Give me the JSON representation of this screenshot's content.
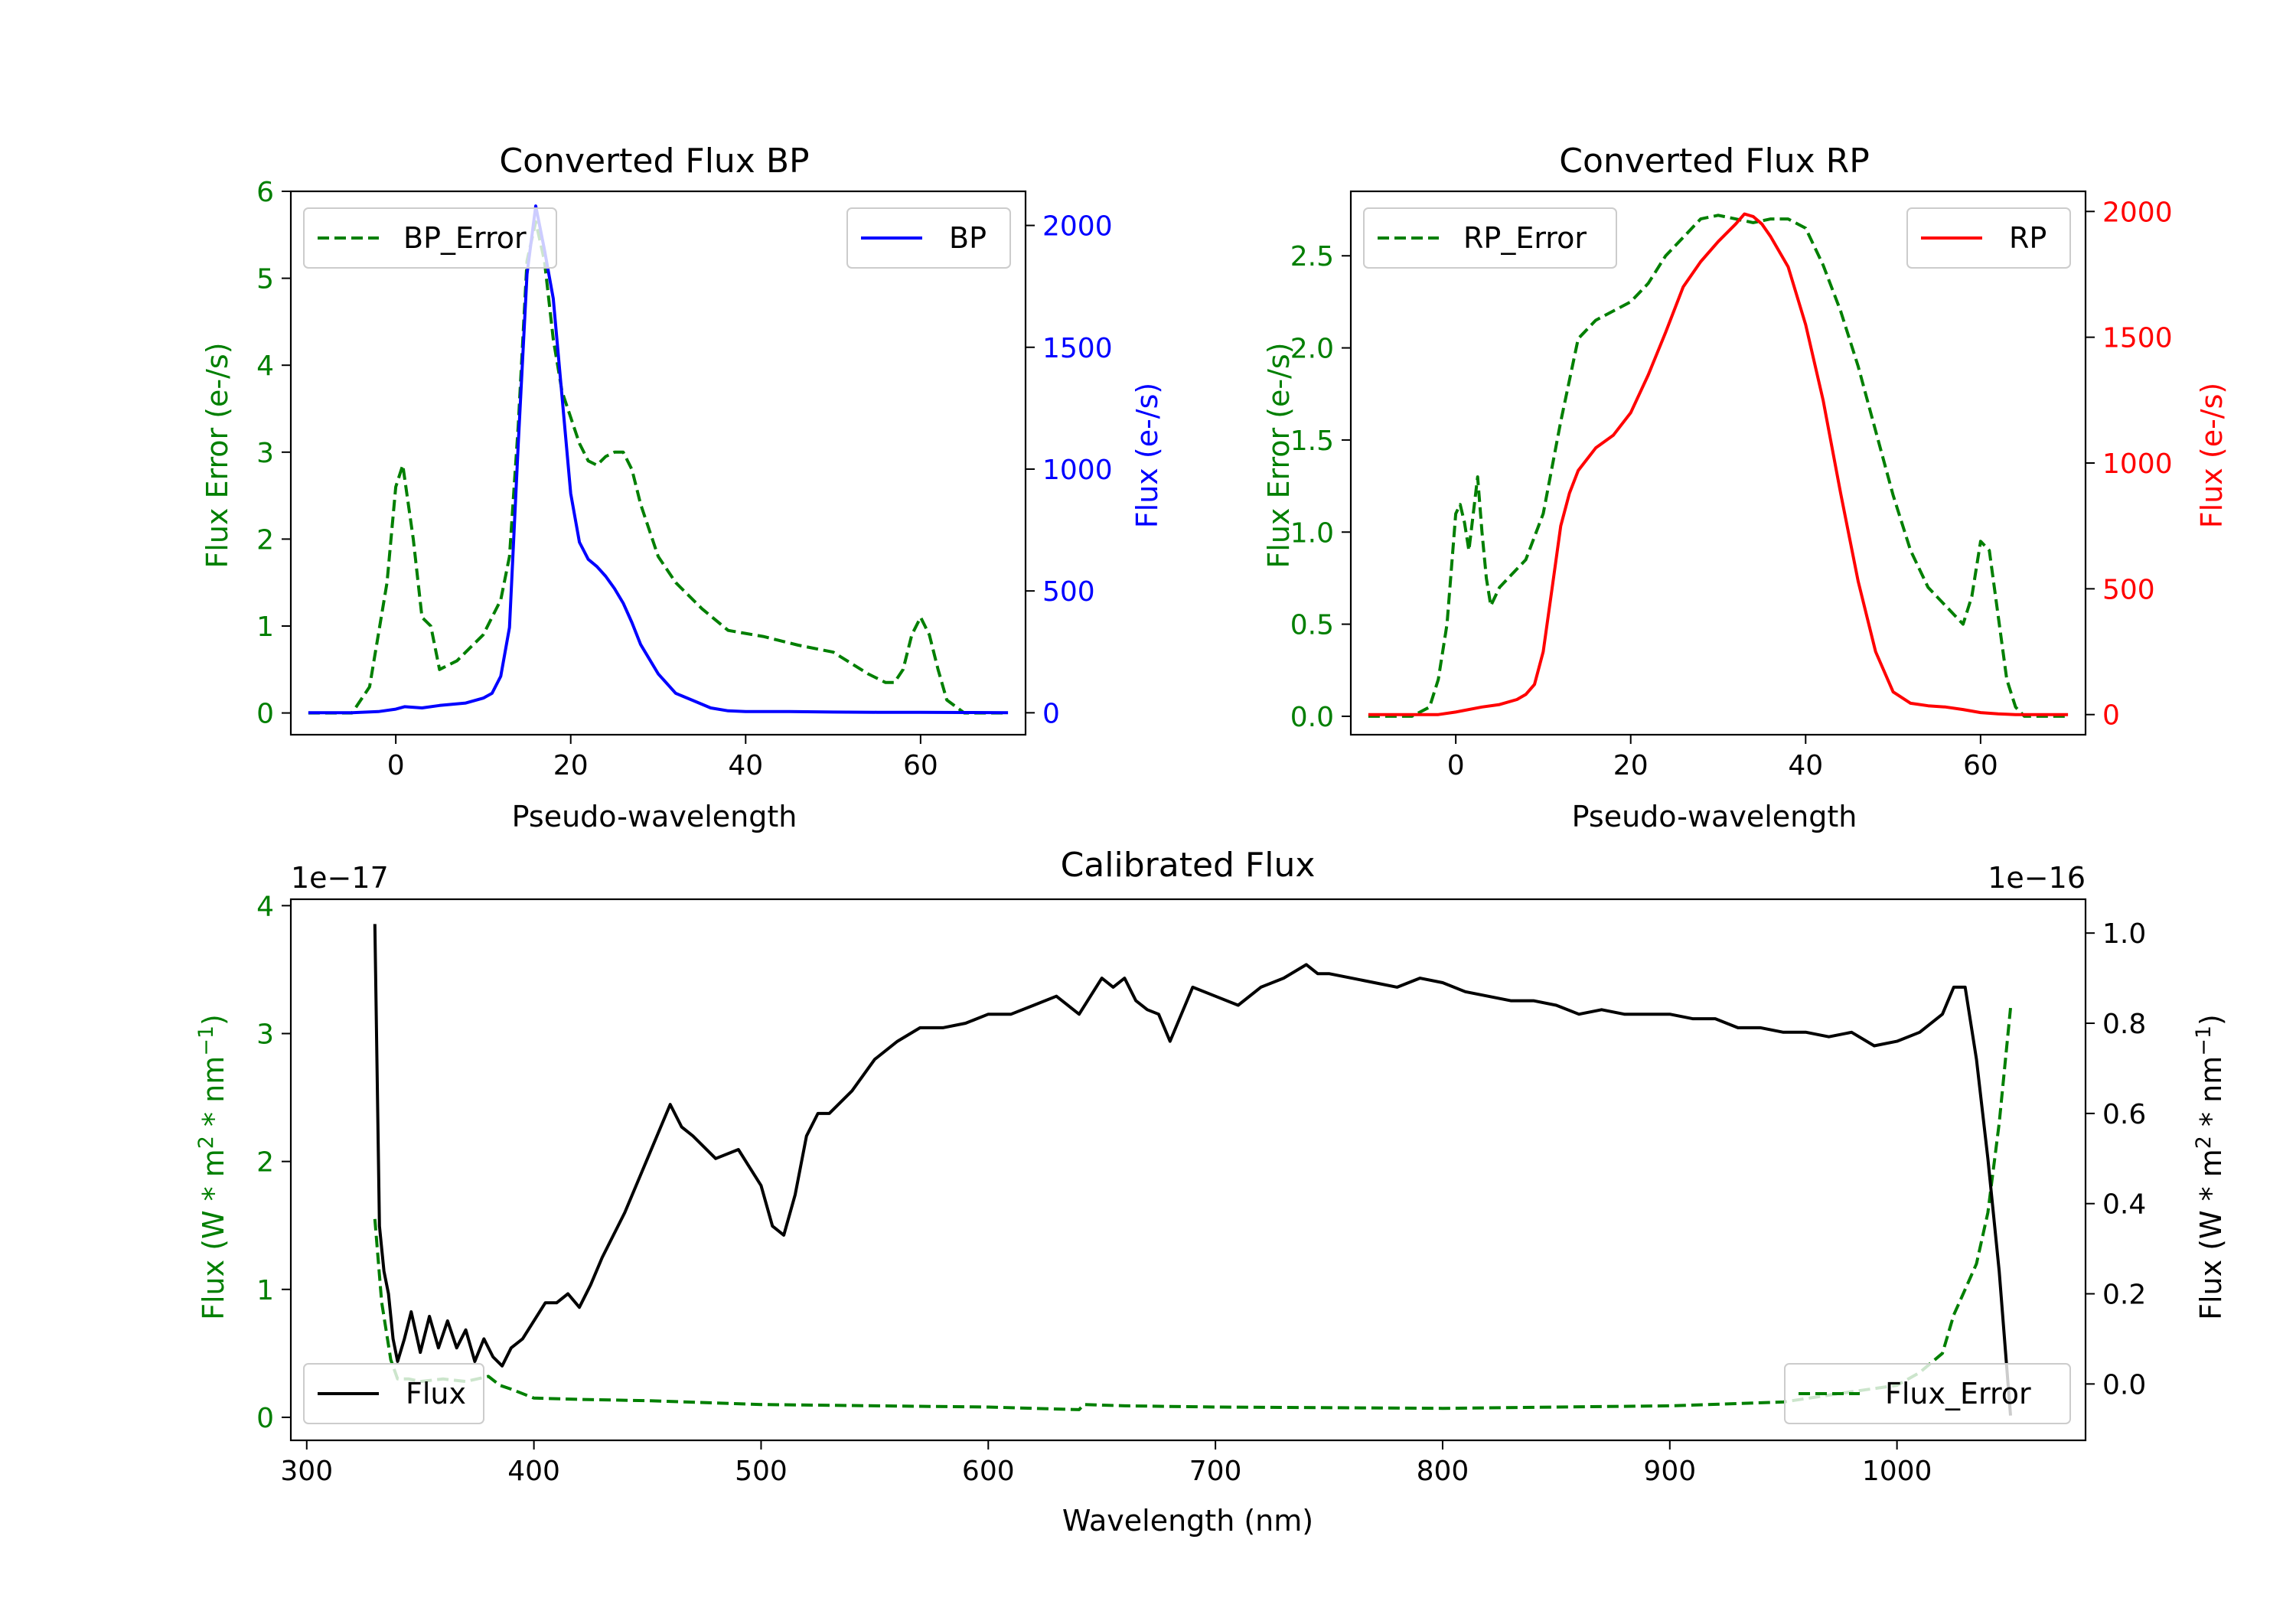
{
  "colors": {
    "error": "#007f00",
    "bp": "#0000ff",
    "rp": "#ff0000",
    "flux": "#000000",
    "axis": "#000000",
    "legend_edge": "#cccccc"
  },
  "chart_data": [
    {
      "id": "bp",
      "type": "line",
      "title": "Converted Flux BP",
      "xlabel": "Pseudo-wavelength",
      "ylabel_left": "Flux Error (e-/s)",
      "ylabel_right": "Flux (e-/s)",
      "xlim": [
        -12,
        72
      ],
      "ylim_left": [
        -0.25,
        6.0
      ],
      "ylim_right": [
        -90,
        2140
      ],
      "x_ticks": [
        "0",
        "20",
        "40",
        "60"
      ],
      "x_tick_values": [
        0,
        20,
        40,
        60
      ],
      "y_left_ticks": [
        "0",
        "1",
        "2",
        "3",
        "4",
        "5",
        "6"
      ],
      "y_left_tick_values": [
        0,
        1,
        2,
        3,
        4,
        5,
        6
      ],
      "y_right_ticks": [
        "0",
        "500",
        "1000",
        "1500",
        "2000"
      ],
      "y_right_tick_values": [
        0,
        500,
        1000,
        1500,
        2000
      ],
      "legend_left": "BP_Error",
      "legend_right": "BP",
      "series": [
        {
          "name": "BP_Error",
          "axis": "left",
          "style": "dashed",
          "x": [
            -10,
            -5,
            -3,
            -1,
            0,
            0.8,
            2,
            3,
            4,
            5,
            7,
            10,
            12,
            13,
            14,
            15,
            16,
            17,
            18,
            19,
            20,
            21,
            22,
            23,
            24,
            25,
            26,
            27,
            28,
            30,
            32,
            35,
            38,
            42,
            46,
            50,
            54,
            56,
            57,
            58,
            59,
            60,
            61,
            62,
            63,
            65,
            70
          ],
          "values": [
            0,
            0,
            0.3,
            1.5,
            2.6,
            2.85,
            2.0,
            1.1,
            1.0,
            0.5,
            0.6,
            0.9,
            1.3,
            1.8,
            3.3,
            5.2,
            5.65,
            5.2,
            4.3,
            3.7,
            3.4,
            3.1,
            2.9,
            2.85,
            2.95,
            3.0,
            3.0,
            2.8,
            2.4,
            1.8,
            1.5,
            1.2,
            0.95,
            0.88,
            0.78,
            0.7,
            0.45,
            0.35,
            0.35,
            0.5,
            0.9,
            1.1,
            0.9,
            0.5,
            0.15,
            0,
            0
          ]
        },
        {
          "name": "BP",
          "axis": "right",
          "style": "solid",
          "x": [
            -10,
            -5,
            -2,
            0,
            1,
            3,
            5,
            8,
            10,
            11,
            12,
            13,
            14,
            15,
            16,
            17,
            18,
            19,
            20,
            21,
            22,
            23,
            24,
            25,
            26,
            27,
            28,
            30,
            32,
            34,
            36,
            38,
            40,
            45,
            50,
            55,
            60,
            65,
            70
          ],
          "values": [
            0,
            0,
            5,
            15,
            25,
            20,
            30,
            40,
            60,
            80,
            150,
            350,
            1100,
            1800,
            2080,
            1900,
            1700,
            1300,
            900,
            700,
            630,
            600,
            560,
            510,
            450,
            370,
            280,
            160,
            80,
            50,
            20,
            8,
            5,
            5,
            3,
            2,
            2,
            1,
            0
          ]
        }
      ]
    },
    {
      "id": "rp",
      "type": "line",
      "title": "Converted Flux RP",
      "xlabel": "Pseudo-wavelength",
      "ylabel_left": "Flux Error (e-/s)",
      "ylabel_right": "Flux (e-/s)",
      "xlim": [
        -12,
        72
      ],
      "ylim_left": [
        -0.1,
        2.85
      ],
      "ylim_right": [
        -80,
        2080
      ],
      "x_ticks": [
        "0",
        "20",
        "40",
        "60"
      ],
      "x_tick_values": [
        0,
        20,
        40,
        60
      ],
      "y_left_ticks": [
        "0.0",
        "0.5",
        "1.0",
        "1.5",
        "2.0",
        "2.5"
      ],
      "y_left_tick_values": [
        0,
        0.5,
        1.0,
        1.5,
        2.0,
        2.5
      ],
      "y_right_ticks": [
        "0",
        "500",
        "1000",
        "1500",
        "2000"
      ],
      "y_right_tick_values": [
        0,
        500,
        1000,
        1500,
        2000
      ],
      "legend_left": "RP_Error",
      "legend_right": "RP",
      "series": [
        {
          "name": "RP_Error",
          "axis": "left",
          "style": "dashed",
          "x": [
            -10,
            -5,
            -3,
            -2,
            -1,
            0,
            0.5,
            1,
            1.5,
            2,
            2.5,
            3,
            3.5,
            4,
            4.5,
            5,
            6,
            8,
            10,
            12,
            14,
            16,
            18,
            20,
            22,
            24,
            26,
            28,
            30,
            32,
            34,
            36,
            38,
            40,
            42,
            44,
            46,
            48,
            50,
            52,
            54,
            56,
            57,
            58,
            59,
            60,
            61,
            62,
            63,
            64,
            65,
            70
          ],
          "values": [
            0,
            0,
            0.05,
            0.2,
            0.5,
            1.1,
            1.15,
            1.05,
            0.9,
            1.1,
            1.3,
            1.0,
            0.75,
            0.6,
            0.65,
            0.7,
            0.75,
            0.85,
            1.1,
            1.6,
            2.05,
            2.15,
            2.2,
            2.25,
            2.35,
            2.5,
            2.6,
            2.7,
            2.72,
            2.7,
            2.68,
            2.7,
            2.7,
            2.65,
            2.45,
            2.2,
            1.9,
            1.55,
            1.2,
            0.9,
            0.7,
            0.6,
            0.55,
            0.5,
            0.65,
            0.95,
            0.9,
            0.55,
            0.2,
            0.05,
            0,
            0
          ]
        },
        {
          "name": "RP",
          "axis": "right",
          "style": "solid",
          "x": [
            -10,
            -5,
            -2,
            0,
            3,
            5,
            7,
            8,
            9,
            10,
            11,
            12,
            13,
            14,
            16,
            18,
            20,
            22,
            24,
            26,
            28,
            30,
            32,
            33,
            34,
            35,
            36,
            38,
            40,
            42,
            44,
            46,
            48,
            50,
            52,
            54,
            56,
            58,
            60,
            62,
            64,
            70
          ],
          "values": [
            0,
            0,
            0,
            10,
            30,
            40,
            60,
            80,
            120,
            250,
            500,
            750,
            880,
            970,
            1060,
            1110,
            1200,
            1350,
            1520,
            1700,
            1800,
            1880,
            1950,
            1990,
            1980,
            1950,
            1900,
            1780,
            1550,
            1250,
            880,
            530,
            250,
            90,
            45,
            35,
            30,
            20,
            8,
            3,
            0,
            0
          ]
        }
      ]
    },
    {
      "id": "calibrated",
      "type": "line",
      "title": "Calibrated Flux",
      "xlabel": "Wavelength (nm)",
      "ylabel_left": "Flux (W * m^2 * nm^-1)",
      "ylabel_right": "Flux (W * m^2 * nm^-1)",
      "left_scale_label": "1e−17",
      "right_scale_label": "1e−16",
      "xlim": [
        293,
        1083
      ],
      "ylim_left": [
        -0.18,
        4.05
      ],
      "ylim_right": [
        -0.125,
        1.075
      ],
      "x_ticks": [
        "300",
        "400",
        "500",
        "600",
        "700",
        "800",
        "900",
        "1000"
      ],
      "x_tick_values": [
        300,
        400,
        500,
        600,
        700,
        800,
        900,
        1000
      ],
      "y_left_ticks": [
        "0",
        "1",
        "2",
        "3",
        "4"
      ],
      "y_left_tick_values": [
        0,
        1,
        2,
        3,
        4
      ],
      "y_right_ticks": [
        "0.0",
        "0.2",
        "0.4",
        "0.6",
        "0.8",
        "1.0"
      ],
      "y_right_tick_values": [
        0,
        0.2,
        0.4,
        0.6,
        0.8,
        1.0
      ],
      "legend_left": "Flux",
      "legend_right": "Flux_Error",
      "series": [
        {
          "name": "Flux_Error",
          "axis": "left",
          "style": "dashed",
          "x": [
            330,
            333,
            337,
            340,
            345,
            350,
            360,
            370,
            380,
            385,
            390,
            400,
            420,
            450,
            500,
            550,
            600,
            640,
            642,
            660,
            700,
            800,
            900,
            950,
            980,
            1000,
            1010,
            1020,
            1025,
            1030,
            1035,
            1040,
            1045,
            1050
          ],
          "values": [
            1.55,
            0.9,
            0.45,
            0.3,
            0.3,
            0.28,
            0.3,
            0.28,
            0.32,
            0.25,
            0.22,
            0.15,
            0.14,
            0.13,
            0.1,
            0.09,
            0.08,
            0.06,
            0.1,
            0.09,
            0.08,
            0.07,
            0.09,
            0.12,
            0.2,
            0.25,
            0.35,
            0.5,
            0.8,
            1.0,
            1.2,
            1.6,
            2.3,
            3.2
          ]
        },
        {
          "name": "Flux",
          "axis": "right",
          "style": "solid",
          "x": [
            330,
            332,
            334,
            336,
            338,
            340,
            343,
            346,
            350,
            354,
            358,
            362,
            366,
            370,
            374,
            378,
            382,
            386,
            390,
            395,
            400,
            405,
            410,
            415,
            420,
            425,
            430,
            440,
            450,
            460,
            465,
            470,
            480,
            490,
            500,
            505,
            510,
            515,
            520,
            525,
            530,
            540,
            550,
            560,
            570,
            580,
            590,
            600,
            610,
            620,
            630,
            640,
            650,
            655,
            660,
            665,
            670,
            675,
            680,
            690,
            700,
            710,
            720,
            730,
            740,
            745,
            750,
            760,
            770,
            780,
            790,
            800,
            810,
            820,
            830,
            840,
            850,
            860,
            870,
            880,
            890,
            900,
            910,
            920,
            930,
            940,
            950,
            960,
            970,
            980,
            990,
            1000,
            1010,
            1020,
            1025,
            1030,
            1035,
            1040,
            1045,
            1050
          ],
          "values": [
            1.02,
            0.35,
            0.25,
            0.2,
            0.1,
            0.05,
            0.1,
            0.16,
            0.07,
            0.15,
            0.08,
            0.14,
            0.08,
            0.12,
            0.05,
            0.1,
            0.06,
            0.04,
            0.08,
            0.1,
            0.14,
            0.18,
            0.18,
            0.2,
            0.17,
            0.22,
            0.28,
            0.38,
            0.5,
            0.62,
            0.57,
            0.55,
            0.5,
            0.52,
            0.44,
            0.35,
            0.33,
            0.42,
            0.55,
            0.6,
            0.6,
            0.65,
            0.72,
            0.76,
            0.79,
            0.79,
            0.8,
            0.82,
            0.82,
            0.84,
            0.86,
            0.82,
            0.9,
            0.88,
            0.9,
            0.85,
            0.83,
            0.82,
            0.76,
            0.88,
            0.86,
            0.84,
            0.88,
            0.9,
            0.93,
            0.91,
            0.91,
            0.9,
            0.89,
            0.88,
            0.9,
            0.89,
            0.87,
            0.86,
            0.85,
            0.85,
            0.84,
            0.82,
            0.83,
            0.82,
            0.82,
            0.82,
            0.81,
            0.81,
            0.79,
            0.79,
            0.78,
            0.78,
            0.77,
            0.78,
            0.75,
            0.76,
            0.78,
            0.82,
            0.88,
            0.88,
            0.72,
            0.5,
            0.25,
            -0.07
          ]
        }
      ]
    }
  ]
}
